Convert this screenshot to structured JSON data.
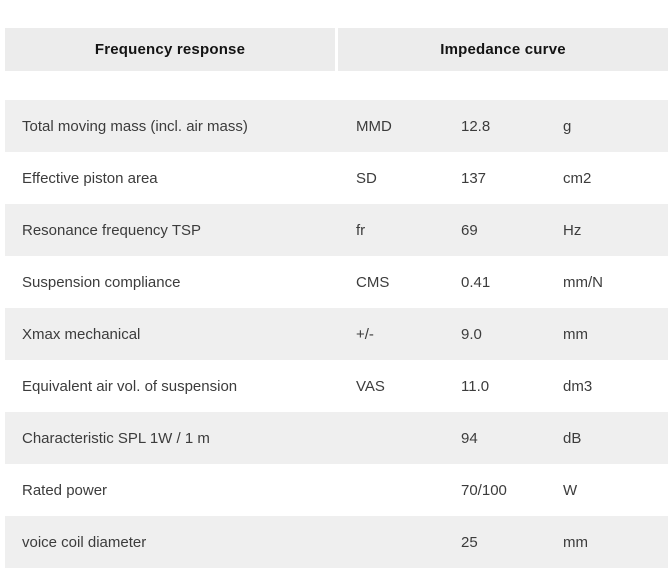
{
  "tabs": [
    {
      "label": "Frequency response"
    },
    {
      "label": "Impedance curve"
    }
  ],
  "table": {
    "rows": [
      {
        "label": "Total moving mass (incl. air mass)",
        "symbol": "MMD",
        "value": "12.8",
        "unit": "g"
      },
      {
        "label": "Effective piston area",
        "symbol": "SD",
        "value": "137",
        "unit": "cm2"
      },
      {
        "label": "Resonance frequency TSP",
        "symbol": "fr",
        "value": "69",
        "unit": "Hz"
      },
      {
        "label": "Suspension compliance",
        "symbol": "CMS",
        "value": "0.41",
        "unit": "mm/N"
      },
      {
        "label": "Xmax mechanical",
        "symbol": "+/-",
        "value": "9.0",
        "unit": "mm"
      },
      {
        "label": "Equivalent air vol. of suspension",
        "symbol": "VAS",
        "value": "11.0",
        "unit": "dm3"
      },
      {
        "label": "Characteristic SPL 1W / 1 m",
        "symbol": "",
        "value": "94",
        "unit": "dB"
      },
      {
        "label": "Rated power",
        "symbol": "",
        "value": "70/100",
        "unit": "W"
      },
      {
        "label": "voice coil diameter",
        "symbol": "",
        "value": "25",
        "unit": "mm"
      }
    ]
  },
  "colors": {
    "page_bg": "#ffffff",
    "tab_bg": "#ececec",
    "tab_text": "#141414",
    "row_alt_bg": "#efefef",
    "row_bg": "#ffffff",
    "row_text": "#3c3c3c"
  }
}
